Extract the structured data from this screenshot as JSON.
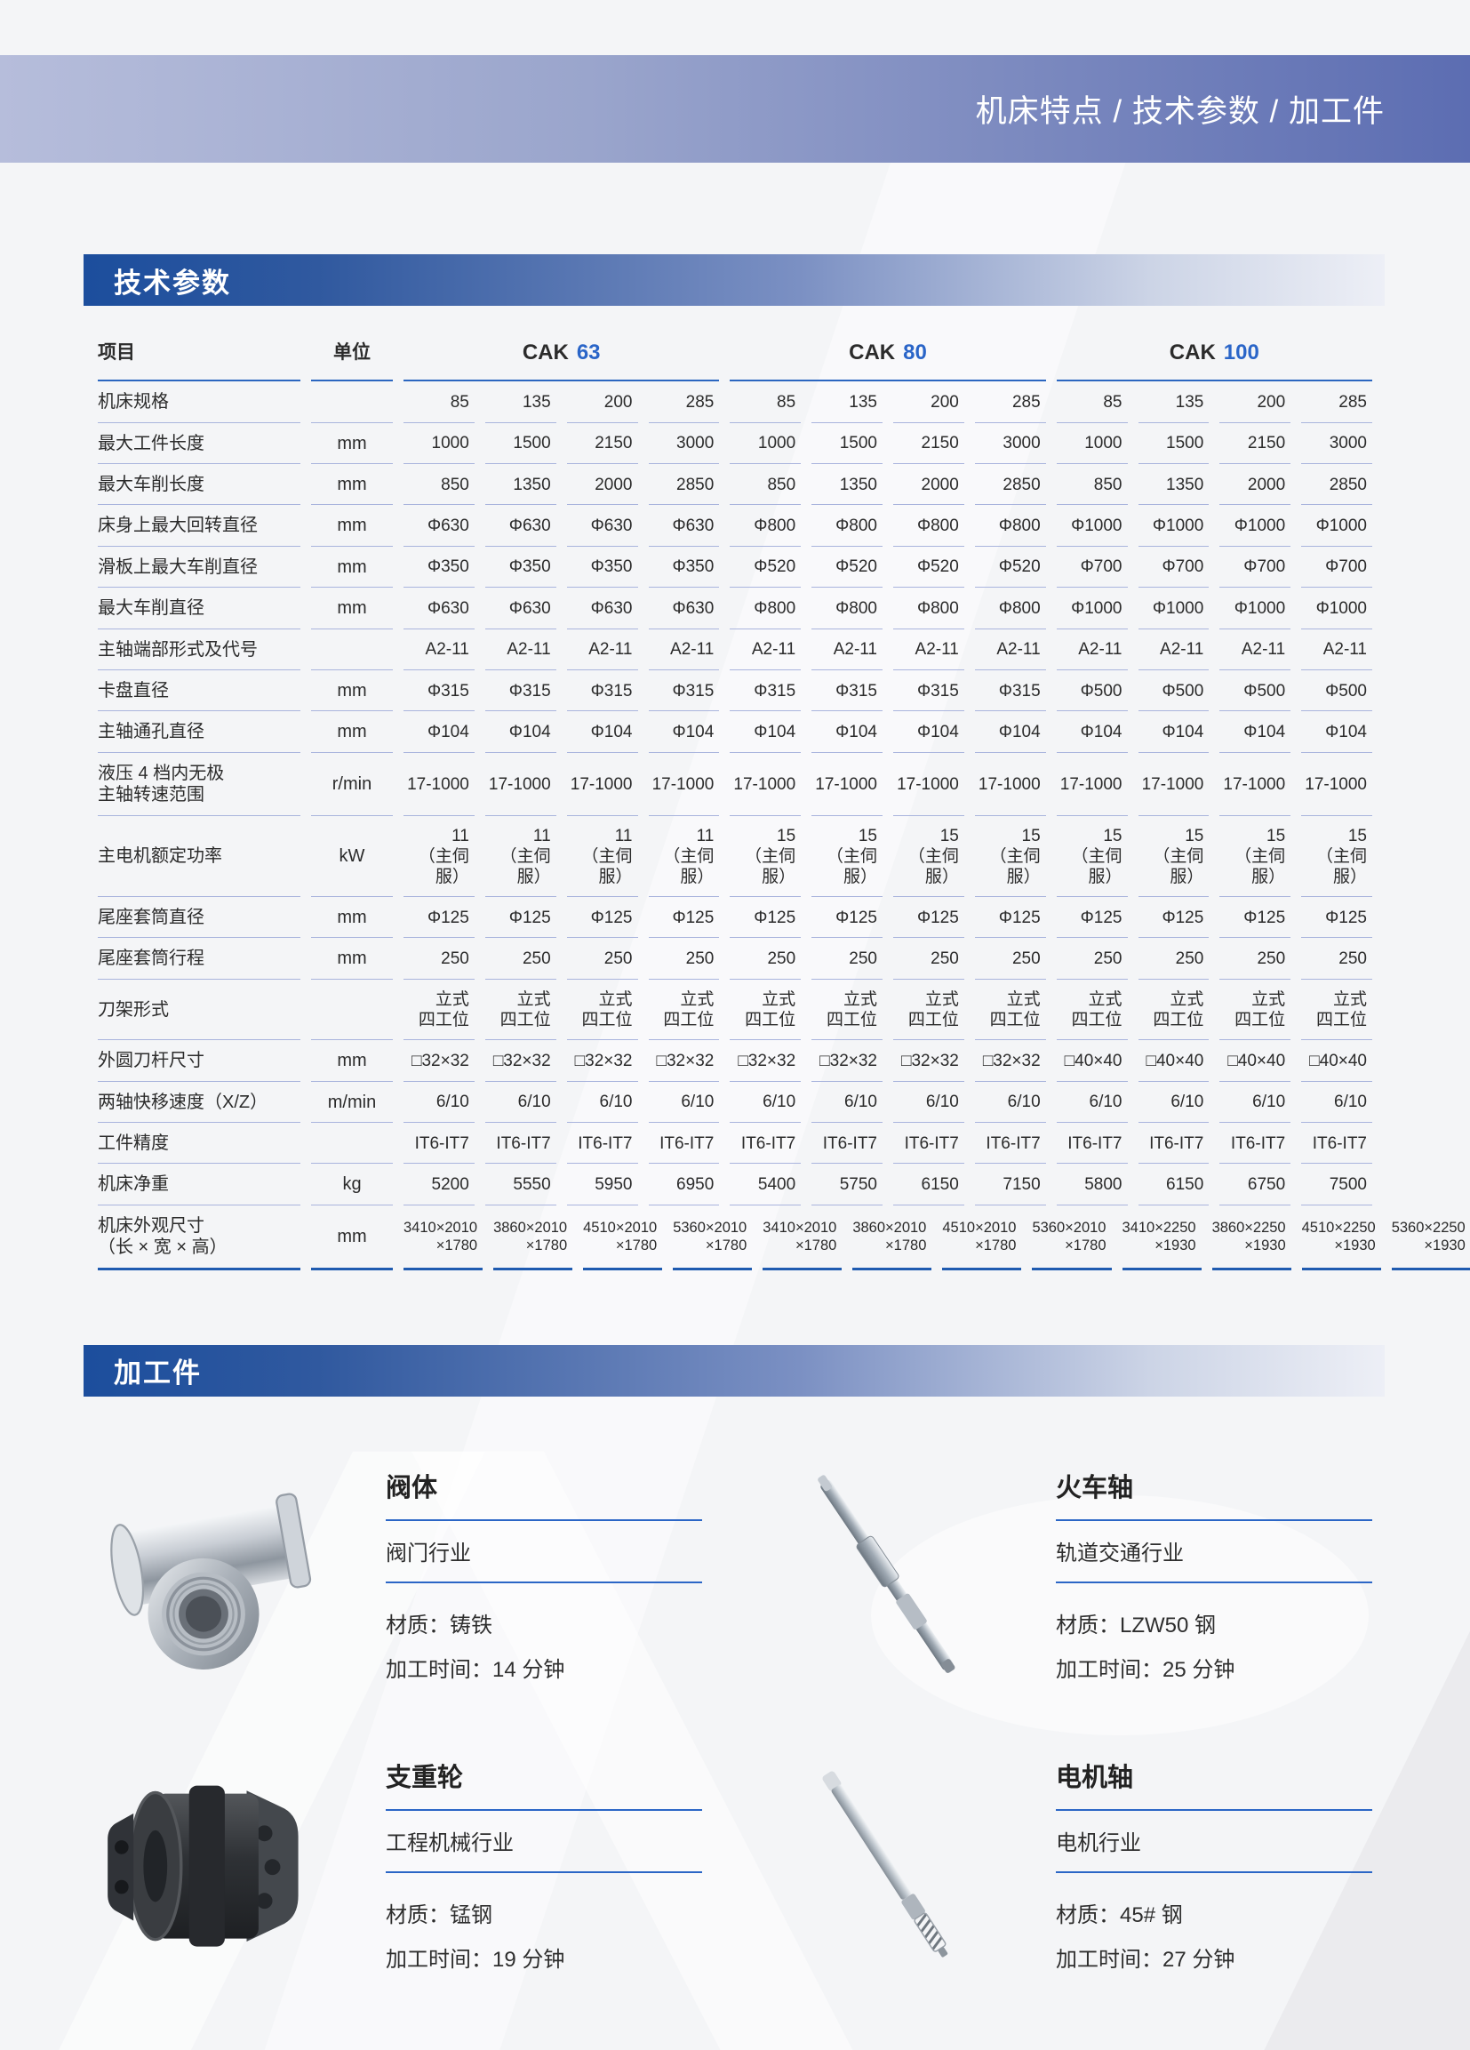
{
  "banner": {
    "title": "机床特点 / 技术参数 / 加工件"
  },
  "spec_section": {
    "title": "技术参数"
  },
  "parts_section": {
    "title": "加工件"
  },
  "table": {
    "item_header": "项目",
    "unit_header": "单位",
    "groups": [
      {
        "prefix": "CAK",
        "number": "63"
      },
      {
        "prefix": "CAK",
        "number": "80"
      },
      {
        "prefix": "CAK",
        "number": "100"
      }
    ],
    "rows": [
      {
        "label": "机床规格",
        "unit": "",
        "values": [
          "85",
          "135",
          "200",
          "285",
          "85",
          "135",
          "200",
          "285",
          "85",
          "135",
          "200",
          "285"
        ]
      },
      {
        "label": "最大工件长度",
        "unit": "mm",
        "values": [
          "1000",
          "1500",
          "2150",
          "3000",
          "1000",
          "1500",
          "2150",
          "3000",
          "1000",
          "1500",
          "2150",
          "3000"
        ]
      },
      {
        "label": "最大车削长度",
        "unit": "mm",
        "values": [
          "850",
          "1350",
          "2000",
          "2850",
          "850",
          "1350",
          "2000",
          "2850",
          "850",
          "1350",
          "2000",
          "2850"
        ]
      },
      {
        "label": "床身上最大回转直径",
        "unit": "mm",
        "values": [
          "Φ630",
          "Φ630",
          "Φ630",
          "Φ630",
          "Φ800",
          "Φ800",
          "Φ800",
          "Φ800",
          "Φ1000",
          "Φ1000",
          "Φ1000",
          "Φ1000"
        ]
      },
      {
        "label": "滑板上最大车削直径",
        "unit": "mm",
        "values": [
          "Φ350",
          "Φ350",
          "Φ350",
          "Φ350",
          "Φ520",
          "Φ520",
          "Φ520",
          "Φ520",
          "Φ700",
          "Φ700",
          "Φ700",
          "Φ700"
        ]
      },
      {
        "label": "最大车削直径",
        "unit": "mm",
        "values": [
          "Φ630",
          "Φ630",
          "Φ630",
          "Φ630",
          "Φ800",
          "Φ800",
          "Φ800",
          "Φ800",
          "Φ1000",
          "Φ1000",
          "Φ1000",
          "Φ1000"
        ]
      },
      {
        "label": "主轴端部形式及代号",
        "unit": "",
        "values": [
          "A2-11",
          "A2-11",
          "A2-11",
          "A2-11",
          "A2-11",
          "A2-11",
          "A2-11",
          "A2-11",
          "A2-11",
          "A2-11",
          "A2-11",
          "A2-11"
        ]
      },
      {
        "label": "卡盘直径",
        "unit": "mm",
        "values": [
          "Φ315",
          "Φ315",
          "Φ315",
          "Φ315",
          "Φ315",
          "Φ315",
          "Φ315",
          "Φ315",
          "Φ500",
          "Φ500",
          "Φ500",
          "Φ500"
        ]
      },
      {
        "label": "主轴通孔直径",
        "unit": "mm",
        "values": [
          "Φ104",
          "Φ104",
          "Φ104",
          "Φ104",
          "Φ104",
          "Φ104",
          "Φ104",
          "Φ104",
          "Φ104",
          "Φ104",
          "Φ104",
          "Φ104"
        ]
      },
      {
        "label": "液压 4 档内无极\n主轴转速范围",
        "unit": "r/min",
        "values": [
          "17-1000",
          "17-1000",
          "17-1000",
          "17-1000",
          "17-1000",
          "17-1000",
          "17-1000",
          "17-1000",
          "17-1000",
          "17-1000",
          "17-1000",
          "17-1000"
        ]
      },
      {
        "label": "主电机额定功率",
        "unit": "kW",
        "values": [
          "11\n（主伺服）",
          "11\n（主伺服）",
          "11\n（主伺服）",
          "11\n（主伺服）",
          "15\n（主伺服）",
          "15\n（主伺服）",
          "15\n（主伺服）",
          "15\n（主伺服）",
          "15\n（主伺服）",
          "15\n（主伺服）",
          "15\n（主伺服）",
          "15\n（主伺服）"
        ]
      },
      {
        "label": "尾座套筒直径",
        "unit": "mm",
        "values": [
          "Φ125",
          "Φ125",
          "Φ125",
          "Φ125",
          "Φ125",
          "Φ125",
          "Φ125",
          "Φ125",
          "Φ125",
          "Φ125",
          "Φ125",
          "Φ125"
        ]
      },
      {
        "label": "尾座套筒行程",
        "unit": "mm",
        "values": [
          "250",
          "250",
          "250",
          "250",
          "250",
          "250",
          "250",
          "250",
          "250",
          "250",
          "250",
          "250"
        ]
      },
      {
        "label": "刀架形式",
        "unit": "",
        "values": [
          "立式\n四工位",
          "立式\n四工位",
          "立式\n四工位",
          "立式\n四工位",
          "立式\n四工位",
          "立式\n四工位",
          "立式\n四工位",
          "立式\n四工位",
          "立式\n四工位",
          "立式\n四工位",
          "立式\n四工位",
          "立式\n四工位"
        ]
      },
      {
        "label": "外圆刀杆尺寸",
        "unit": "mm",
        "values": [
          "□32×32",
          "□32×32",
          "□32×32",
          "□32×32",
          "□32×32",
          "□32×32",
          "□32×32",
          "□32×32",
          "□40×40",
          "□40×40",
          "□40×40",
          "□40×40"
        ]
      },
      {
        "label": "两轴快移速度（X/Z）",
        "unit": "m/min",
        "values": [
          "6/10",
          "6/10",
          "6/10",
          "6/10",
          "6/10",
          "6/10",
          "6/10",
          "6/10",
          "6/10",
          "6/10",
          "6/10",
          "6/10"
        ]
      },
      {
        "label": "工件精度",
        "unit": "",
        "values": [
          "IT6-IT7",
          "IT6-IT7",
          "IT6-IT7",
          "IT6-IT7",
          "IT6-IT7",
          "IT6-IT7",
          "IT6-IT7",
          "IT6-IT7",
          "IT6-IT7",
          "IT6-IT7",
          "IT6-IT7",
          "IT6-IT7"
        ]
      },
      {
        "label": "机床净重",
        "unit": "kg",
        "values": [
          "5200",
          "5550",
          "5950",
          "6950",
          "5400",
          "5750",
          "6150",
          "7150",
          "5800",
          "6150",
          "6750",
          "7500"
        ]
      },
      {
        "label": "机床外观尺寸\n（长 × 宽 × 高）",
        "unit": "mm",
        "small": true,
        "values": [
          "3410×2010\n×1780",
          "3860×2010\n×1780",
          "4510×2010\n×1780",
          "5360×2010\n×1780",
          "3410×2010\n×1780",
          "3860×2010\n×1780",
          "4510×2010\n×1780",
          "5360×2010\n×1780",
          "3410×2250\n×1930",
          "3860×2250\n×1930",
          "4510×2250\n×1930",
          "5360×2250\n×1930"
        ]
      }
    ]
  },
  "parts": [
    {
      "title": "阀体",
      "industry": "阀门行业",
      "material": "材质：铸铁",
      "time": "加工时间：14 分钟",
      "image": "valve-body"
    },
    {
      "title": "火车轴",
      "industry": "轨道交通行业",
      "material": "材质：LZW50 钢",
      "time": "加工时间：25 分钟",
      "image": "train-axle"
    },
    {
      "title": "支重轮",
      "industry": "工程机械行业",
      "material": "材质：锰钢",
      "time": "加工时间：19 分钟",
      "image": "track-roller"
    },
    {
      "title": "电机轴",
      "industry": "电机行业",
      "material": "材质：45# 钢",
      "time": "加工时间：27 分钟",
      "image": "motor-shaft"
    }
  ],
  "colors": {
    "accent_number_blue": "#2a65c8",
    "header_underline": "#2b66c0",
    "row_separator": "#a9b4dd",
    "table_bottom_border": "#1f5bb0",
    "banner_gradient_left": "#b6bddb",
    "banner_gradient_right": "#5c6db2",
    "section_bar_left": "#1c4e9d",
    "text": "#2b2b2b"
  }
}
